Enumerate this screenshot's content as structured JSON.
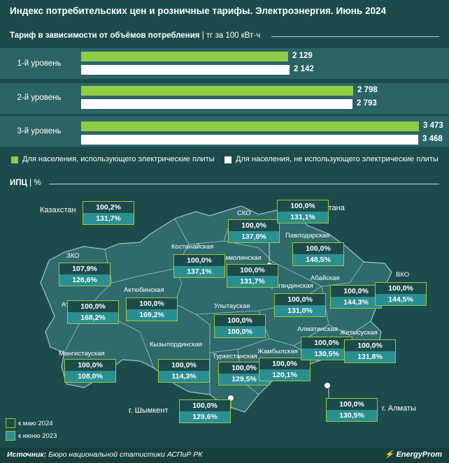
{
  "title": "Индекс потребительских цен и розничные тарифы. Электроэнергия. Июнь 2024",
  "tariff_header": {
    "bold": "Тариф в зависимости от объёмов потребления",
    "unit": "| тг за 100 кВт·ч"
  },
  "cpi_header": {
    "bold": "ИПЦ",
    "unit": "| %"
  },
  "colors": {
    "electric": "#8dcd45",
    "non_electric": "#ffffff",
    "background": "#1c4b4c",
    "band": "#2c6466",
    "box_border": "#98c93c",
    "box_bottom": "#2b8f92"
  },
  "chart_data": [
    {
      "type": "bar",
      "orientation": "horizontal",
      "title": "Тариф в зависимости от объёмов потребления",
      "unit": "тг за 100 кВт·ч",
      "categories": [
        "1-й уровень",
        "2-й уровень",
        "3-й уровень"
      ],
      "series": [
        {
          "name": "Для населения, использующего электрические плиты",
          "values": [
            2129,
            2798,
            3473
          ],
          "labels": [
            "2 129",
            "2 798",
            "3 473"
          ]
        },
        {
          "name": "Для населения, не использующего электрические плиты",
          "values": [
            2142,
            2793,
            3468
          ],
          "labels": [
            "2 142",
            "2 793",
            "3 468"
          ]
        }
      ],
      "xlim": [
        0,
        3473
      ],
      "legend": "bottom"
    },
    {
      "type": "table",
      "title": "ИПЦ",
      "unit": "%",
      "series_names": [
        "к маю 2024",
        "к июню 2023"
      ],
      "rows": [
        {
          "region": "Казахстан",
          "may": "100,2%",
          "june": "131,7%"
        },
        {
          "region": "СКО",
          "may": "100,0%",
          "june": "137,0%"
        },
        {
          "region": "г. Астана",
          "may": "100,0%",
          "june": "131,1%"
        },
        {
          "region": "Павлодарская",
          "may": "100,0%",
          "june": "148,5%"
        },
        {
          "region": "ЗКО",
          "may": "107,9%",
          "june": "126,6%"
        },
        {
          "region": "Костанайская",
          "may": "100,0%",
          "june": "137,1%"
        },
        {
          "region": "Акмолинская",
          "may": "100,0%",
          "june": "131,7%"
        },
        {
          "region": "Актюбинская",
          "may": "100,0%",
          "june": "169,2%"
        },
        {
          "region": "Атырауская",
          "may": "100,0%",
          "june": "168,2%"
        },
        {
          "region": "Карагандинская",
          "may": "100,0%",
          "june": "131,0%"
        },
        {
          "region": "Абайская",
          "may": "100,0%",
          "june": "144,3%"
        },
        {
          "region": "ВКО",
          "may": "100,0%",
          "june": "144,5%"
        },
        {
          "region": "Улытауская",
          "may": "100,0%",
          "june": "100,0%"
        },
        {
          "region": "Мангистауская",
          "may": "100,0%",
          "june": "108,0%"
        },
        {
          "region": "Кызылординская",
          "may": "100,0%",
          "june": "114,3%"
        },
        {
          "region": "Туркестанская",
          "may": "100,0%",
          "june": "129,5%"
        },
        {
          "region": "Жамбылская",
          "may": "100,0%",
          "june": "120,1%"
        },
        {
          "region": "Алматинская",
          "may": "100,0%",
          "june": "130,5%"
        },
        {
          "region": "Жетысуская",
          "may": "100,0%",
          "june": "131,8%"
        },
        {
          "region": "г. Шымкент",
          "may": "100,0%",
          "june": "129,6%"
        },
        {
          "region": "г. Алматы",
          "may": "100,0%",
          "june": "130,5%"
        }
      ]
    }
  ],
  "legend_map": {
    "may": "к маю 2024",
    "june": "к июню 2023"
  },
  "footer": {
    "source_label": "Источник:",
    "source_text": "Бюро национальной статистики АСПиР РК",
    "logo": "EnergyProm"
  }
}
